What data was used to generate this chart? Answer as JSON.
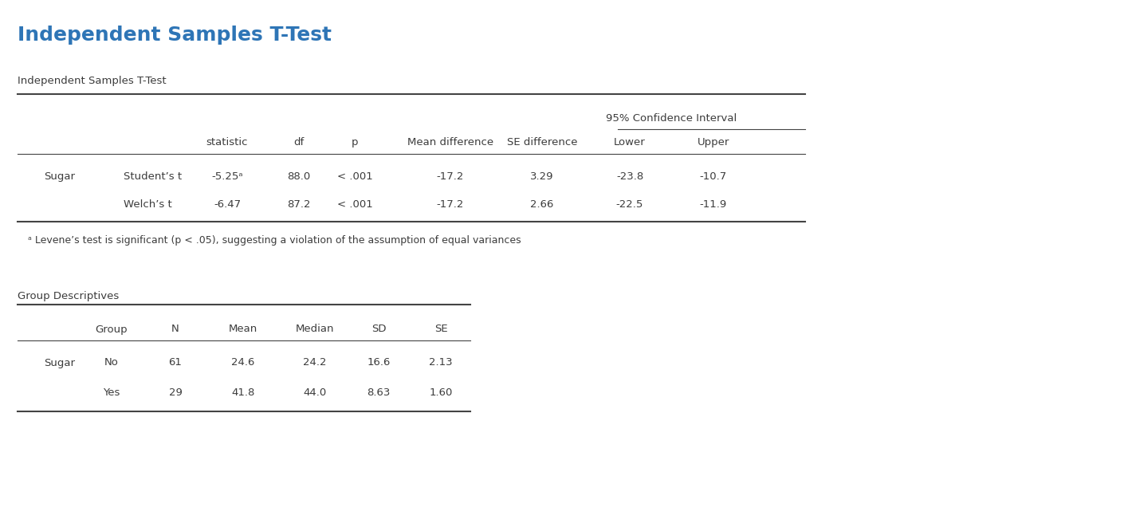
{
  "title": "Independent Samples T-Test",
  "title_color": "#2e75b6",
  "bg_color": "#ffffff",
  "table1_label": "Independent Samples T-Test",
  "table1_header_ci": "95% Confidence Interval",
  "table1_cols": [
    "statistic",
    "df",
    "p",
    "Mean difference",
    "SE difference",
    "Lower",
    "Upper"
  ],
  "table1_rows": [
    [
      "Sugar",
      "Student’s t",
      "-5.25ᵃ",
      "88.0",
      "< .001",
      "-17.2",
      "3.29",
      "-23.8",
      "-10.7"
    ],
    [
      "",
      "Welch’s t",
      "-6.47",
      "87.2",
      "< .001",
      "-17.2",
      "2.66",
      "-22.5",
      "-11.9"
    ]
  ],
  "footnote": "ᵃ Levene’s test is significant (p < .05), suggesting a violation of the assumption of equal variances",
  "table2_label": "Group Descriptives",
  "table2_cols": [
    "Group",
    "N",
    "Mean",
    "Median",
    "SD",
    "SE"
  ],
  "table2_rows": [
    [
      "Sugar",
      "No",
      "61",
      "24.6",
      "24.2",
      "16.6",
      "2.13"
    ],
    [
      "",
      "Yes",
      "29",
      "41.8",
      "44.0",
      "8.63",
      "1.60"
    ]
  ],
  "text_color": "#3c3c3c",
  "line_color": "#444444",
  "header_color": "#3c3c3c",
  "title_fs": 18,
  "section_fs": 9.5,
  "header_fs": 9.5,
  "cell_fs": 9.5,
  "foot_fs": 9.0,
  "fig_w": 14.1,
  "fig_h": 6.66,
  "dpi": 100
}
